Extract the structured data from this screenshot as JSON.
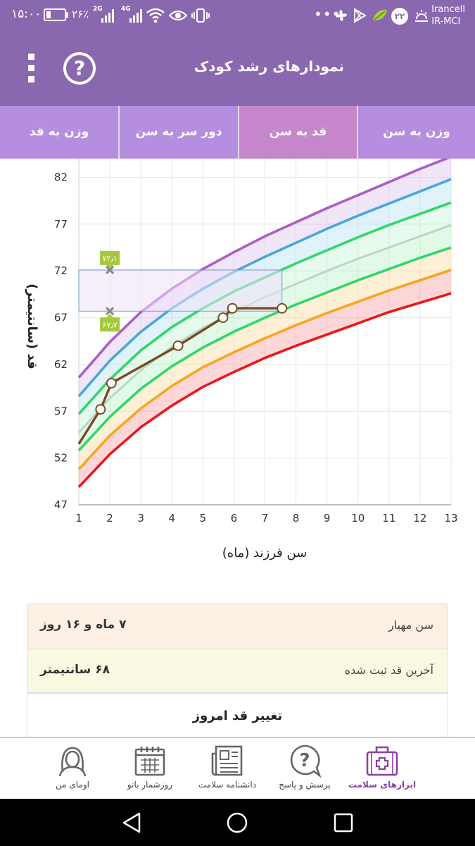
{
  "status_bar": {
    "time": "۱۵:۰۰",
    "battery_percent": "۲۶٪",
    "battery_level": 0.26,
    "net_type_1": "2G",
    "net_type_2": "4G",
    "notification_count": "۲۲",
    "carrier_1": "Irancell",
    "carrier_2": "IR-MCI",
    "icons": [
      "signal-icon",
      "wifi-icon",
      "eye-icon",
      "vibrate-icon",
      "more-dots-icon",
      "pinwheel-icon",
      "play-store-icon",
      "leaf-icon",
      "sunrise-icon"
    ]
  },
  "header": {
    "title": "نمودارهای رشد کودک",
    "menu_icon": "more-vertical-icon",
    "help_icon": "help-circle-icon",
    "help_text": "?"
  },
  "colors": {
    "primary": "#8a68b0",
    "tab_bg": "#b68ee0",
    "tab_active": "#c586cc",
    "curve_purple": "#a95fc4",
    "curve_blue": "#49a8d6",
    "curve_green": "#32d66c",
    "curve_median": "#b9d8c4",
    "curve_orange": "#f5a623",
    "curve_red": "#e8191c",
    "child_line": "#7a4a25"
  },
  "tabs": [
    {
      "label": "وزن به سن",
      "active": false
    },
    {
      "label": "قد به سن",
      "active": true
    },
    {
      "label": "دور سر به سن",
      "active": false
    },
    {
      "label": "وزن به قد",
      "active": false
    }
  ],
  "chart_data": {
    "type": "line",
    "xlabel": "سن فرزند (ماه)",
    "ylabel": "قد (سانتیمتر)",
    "xlim": [
      1,
      13
    ],
    "ylim": [
      47,
      84
    ],
    "xticks": [
      1,
      2,
      3,
      4,
      5,
      6,
      7,
      8,
      9,
      10,
      11,
      12,
      13
    ],
    "yticks": [
      47,
      52,
      57,
      62,
      67,
      72,
      77,
      82
    ],
    "grid": true,
    "reference_curves": [
      {
        "color": "red",
        "points": [
          [
            1,
            48.9
          ],
          [
            2,
            52.4
          ],
          [
            3,
            55.3
          ],
          [
            4,
            57.6
          ],
          [
            5,
            59.6
          ],
          [
            6,
            61.2
          ],
          [
            7,
            62.7
          ],
          [
            8,
            64.0
          ],
          [
            9,
            65.2
          ],
          [
            10,
            66.4
          ],
          [
            11,
            67.6
          ],
          [
            12,
            68.6
          ],
          [
            13,
            69.6
          ]
        ]
      },
      {
        "color": "orange",
        "points": [
          [
            1,
            50.8
          ],
          [
            2,
            54.4
          ],
          [
            3,
            57.3
          ],
          [
            4,
            59.7
          ],
          [
            5,
            61.7
          ],
          [
            6,
            63.3
          ],
          [
            7,
            64.8
          ],
          [
            8,
            66.2
          ],
          [
            9,
            67.5
          ],
          [
            10,
            68.7
          ],
          [
            11,
            69.9
          ],
          [
            12,
            71.0
          ],
          [
            13,
            72.1
          ]
        ]
      },
      {
        "color": "green",
        "points": [
          [
            1,
            52.8
          ],
          [
            2,
            56.4
          ],
          [
            3,
            59.4
          ],
          [
            4,
            61.8
          ],
          [
            5,
            63.8
          ],
          [
            6,
            65.5
          ],
          [
            7,
            67.0
          ],
          [
            8,
            68.4
          ],
          [
            9,
            69.7
          ],
          [
            10,
            71.0
          ],
          [
            11,
            72.2
          ],
          [
            12,
            73.4
          ],
          [
            13,
            74.5
          ]
        ]
      },
      {
        "color": "median",
        "points": [
          [
            1,
            54.7
          ],
          [
            2,
            58.4
          ],
          [
            3,
            61.4
          ],
          [
            4,
            63.9
          ],
          [
            5,
            65.9
          ],
          [
            6,
            67.6
          ],
          [
            7,
            69.2
          ],
          [
            8,
            70.6
          ],
          [
            9,
            72.0
          ],
          [
            10,
            73.3
          ],
          [
            11,
            74.5
          ],
          [
            12,
            75.7
          ],
          [
            13,
            76.9
          ]
        ]
      },
      {
        "color": "green",
        "points": [
          [
            1,
            56.7
          ],
          [
            2,
            60.4
          ],
          [
            3,
            63.5
          ],
          [
            4,
            66.0
          ],
          [
            5,
            68.0
          ],
          [
            6,
            69.8
          ],
          [
            7,
            71.3
          ],
          [
            8,
            72.8
          ],
          [
            9,
            74.2
          ],
          [
            10,
            75.6
          ],
          [
            11,
            76.9
          ],
          [
            12,
            78.1
          ],
          [
            13,
            79.3
          ]
        ]
      },
      {
        "color": "blue",
        "points": [
          [
            1,
            58.6
          ],
          [
            2,
            62.4
          ],
          [
            3,
            65.5
          ],
          [
            4,
            68.0
          ],
          [
            5,
            70.1
          ],
          [
            6,
            71.9
          ],
          [
            7,
            73.5
          ],
          [
            8,
            75.0
          ],
          [
            9,
            76.5
          ],
          [
            10,
            77.9
          ],
          [
            11,
            79.2
          ],
          [
            12,
            80.5
          ],
          [
            13,
            81.8
          ]
        ]
      },
      {
        "color": "purple",
        "points": [
          [
            1,
            60.6
          ],
          [
            2,
            64.4
          ],
          [
            3,
            67.6
          ],
          [
            4,
            70.1
          ],
          [
            5,
            72.2
          ],
          [
            6,
            74.0
          ],
          [
            7,
            75.7
          ],
          [
            8,
            77.2
          ],
          [
            9,
            78.7
          ],
          [
            10,
            80.1
          ],
          [
            11,
            81.5
          ],
          [
            12,
            82.9
          ],
          [
            13,
            84.2
          ]
        ]
      }
    ],
    "child_series": {
      "points": [
        [
          1.0,
          53.5
        ],
        [
          1.7,
          57.2
        ],
        [
          2.05,
          60.0
        ],
        [
          4.2,
          64.0
        ],
        [
          5.65,
          67.0
        ],
        [
          5.95,
          68.0
        ],
        [
          7.55,
          68.0
        ]
      ]
    },
    "today_range": {
      "x_from": 1.0,
      "x_to": 7.55,
      "y_min": 67.7,
      "y_max": 72.1,
      "x_marker": 2.0,
      "label_min": "۶۷٫۷",
      "label_max": "۷۲٫۱"
    }
  },
  "info": {
    "age_label": "سن مهیار",
    "age_value": "۷ ماه و ۱۶ روز",
    "height_label": "آخرین قد ثبت شده",
    "height_value": "۶۸ سانتیمتر",
    "change_button": "تغییر قد امروز"
  },
  "bottom_nav": [
    {
      "label": "ابزارهای سلامت",
      "icon": "medical-kit-icon",
      "active": true
    },
    {
      "label": "پرسش و پاسخ",
      "icon": "question-bubble-icon",
      "active": false
    },
    {
      "label": "دانشنامه سلامت",
      "icon": "newspaper-icon",
      "active": false
    },
    {
      "label": "روزشمار بانو",
      "icon": "calendar-icon",
      "active": false
    },
    {
      "label": "اومای من",
      "icon": "woman-avatar-icon",
      "active": false
    }
  ],
  "system_nav": [
    "back-icon",
    "home-icon",
    "recents-icon"
  ]
}
